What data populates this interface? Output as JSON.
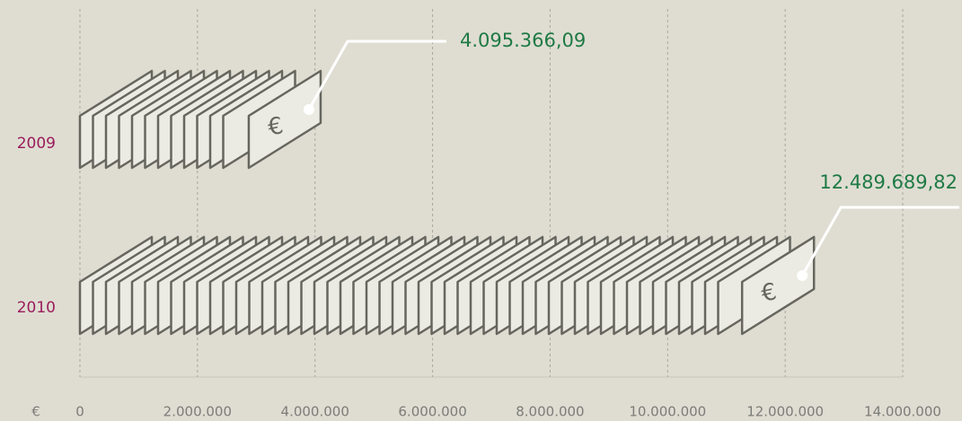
{
  "chart_data": {
    "type": "bar",
    "orientation": "horizontal",
    "xlabel": "€",
    "categories": [
      "2009",
      "2010"
    ],
    "values": [
      4095366.09,
      12489689.82
    ],
    "value_labels": [
      "4.095.366,09",
      "12.489.689,82"
    ],
    "color": "#ebebe4",
    "xlim": [
      0,
      14000000
    ],
    "xticks": [
      0,
      {
        "value": 2000000,
        "label": "2.000.000"
      },
      {
        "value": 4000000,
        "label": "4.000.000"
      },
      {
        "value": 6000000,
        "label": "6.000.000"
      },
      {
        "value": 8000000,
        "label": "8.000.000"
      },
      {
        "value": 10000000,
        "label": "10.000.000"
      },
      {
        "value": 12000000,
        "label": "12.000.000"
      },
      {
        "value": 14000000,
        "label": "14.000.000"
      }
    ],
    "grid": true
  }
}
